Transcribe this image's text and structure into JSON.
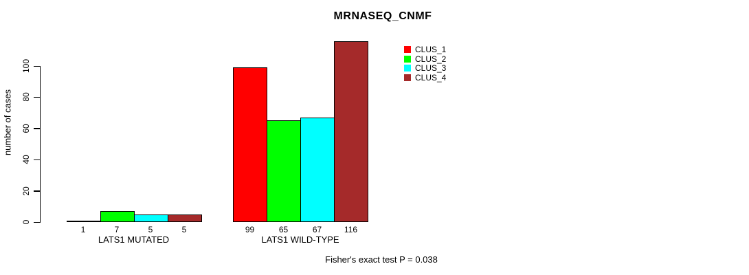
{
  "title": "MRNASEQ_CNMF",
  "caption": "Fisher's exact test P = 0.038",
  "chart_data": {
    "type": "bar",
    "title": "MRNASEQ_CNMF",
    "xlabel": "",
    "ylabel": "number of cases",
    "ylim": [
      0,
      120
    ],
    "yticks": [
      0,
      20,
      40,
      60,
      80,
      100
    ],
    "grid": false,
    "categories": [
      "LATS1 MUTATED",
      "LATS1 WILD-TYPE"
    ],
    "series": [
      {
        "name": "CLUS_1",
        "color": "#ff0000",
        "values": [
          1,
          99
        ]
      },
      {
        "name": "CLUS_2",
        "color": "#00ff00",
        "values": [
          7,
          65
        ]
      },
      {
        "name": "CLUS_3",
        "color": "#00ffff",
        "values": [
          5,
          67
        ]
      },
      {
        "name": "CLUS_4",
        "color": "#a52a2a",
        "values": [
          5,
          116
        ]
      }
    ],
    "bar_value_labels": [
      [
        1,
        7,
        5,
        5
      ],
      [
        99,
        65,
        67,
        116
      ]
    ],
    "legend": {
      "position": "top-right",
      "entries": [
        "CLUS_1",
        "CLUS_2",
        "CLUS_3",
        "CLUS_4"
      ]
    },
    "annotation": "Fisher's exact test P = 0.038"
  }
}
